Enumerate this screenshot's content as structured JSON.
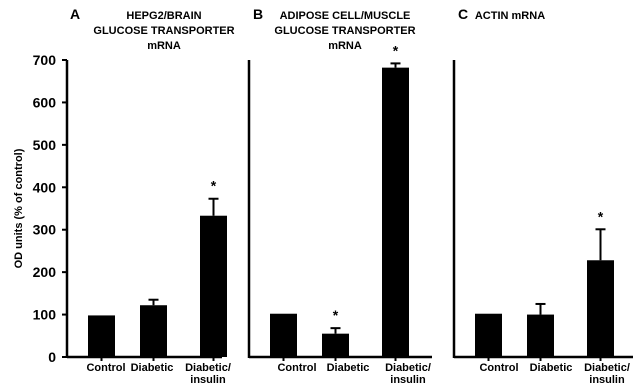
{
  "figure": {
    "ylabel": "OD units (% of control)",
    "y_ticks": [
      0,
      100,
      200,
      300,
      400,
      500,
      600,
      700
    ],
    "ylim": [
      0,
      700
    ],
    "bar_color": "#000000",
    "asterisk": "*"
  },
  "chart_data": [
    {
      "type": "bar",
      "panel": "A",
      "title_lines": [
        "HEPG2/BRAIN",
        "GLUCOSE TRANSPORTER",
        "mRNA"
      ],
      "categories": [
        [
          "Control"
        ],
        [
          "Diabetic"
        ],
        [
          "Diabetic/",
          "insulin"
        ]
      ],
      "values": [
        98,
        122,
        333
      ],
      "errors": [
        0,
        13,
        40
      ],
      "significant": [
        false,
        false,
        true
      ],
      "ylim": [
        0,
        700
      ],
      "ylabel": "OD units (% of control)"
    },
    {
      "type": "bar",
      "panel": "B",
      "title_lines": [
        "ADIPOSE CELL/MUSCLE",
        "GLUCOSE TRANSPORTER",
        "mRNA"
      ],
      "categories": [
        [
          "Control"
        ],
        [
          "Diabetic"
        ],
        [
          "Diabetic/",
          "insulin"
        ]
      ],
      "values": [
        102,
        55,
        682
      ],
      "errors": [
        0,
        13,
        10
      ],
      "significant": [
        false,
        true,
        true
      ],
      "ylim": [
        0,
        700
      ]
    },
    {
      "type": "bar",
      "panel": "C",
      "title_lines": [
        "ACTIN mRNA"
      ],
      "categories": [
        [
          "Control"
        ],
        [
          "Diabetic"
        ],
        [
          "Diabetic/",
          "insulin"
        ]
      ],
      "values": [
        102,
        100,
        228
      ],
      "errors": [
        0,
        25,
        73
      ],
      "significant": [
        false,
        false,
        true
      ],
      "ylim": [
        0,
        700
      ]
    }
  ]
}
